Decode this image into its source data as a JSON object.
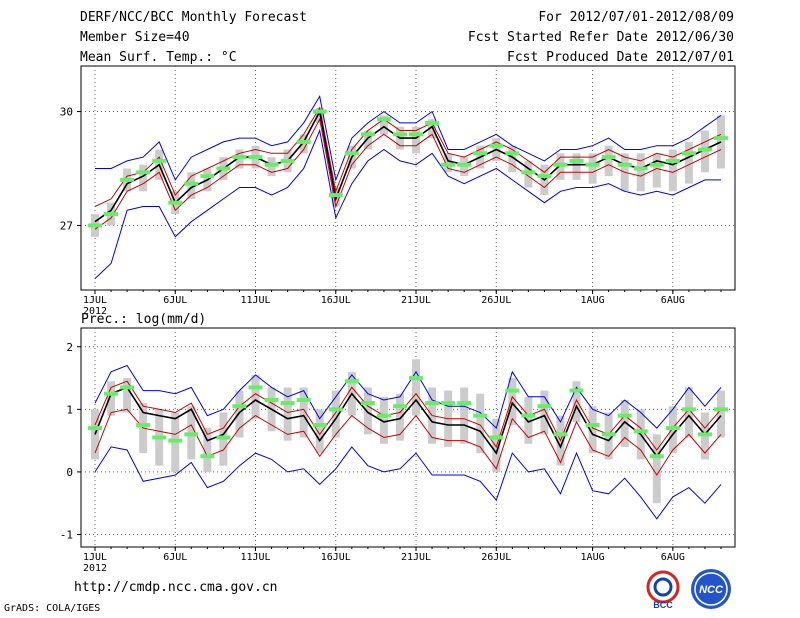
{
  "header": {
    "title": "DERF/NCC/BCC Monthly Forecast",
    "member_size": "Member Size=40",
    "variable": "Mean Surf. Temp.: °C",
    "period": "For 2012/07/01-2012/08/09",
    "started": "Fcst Started Refer Date 2012/06/30",
    "produced": "Fcst Produced Date 2012/07/01"
  },
  "footer": {
    "url": "http://cmdp.ncc.cma.gov.cn",
    "grads": "GrADS: COLA/IGES",
    "logo_left_text": "BCC",
    "logo_right_text": "NCC"
  },
  "colors": {
    "ensemble_bar": "#cccccc",
    "green_mark": "#66ee66",
    "mean_line": "#000000",
    "spread_inner": "#cc0000",
    "spread_outer": "#0000ee"
  },
  "chart_data": [
    {
      "type": "line",
      "title": "Mean Surf. Temp.: °C",
      "ylim": [
        25.3,
        31.2
      ],
      "yticks": [
        27,
        30
      ],
      "ytick_labels": [
        "27",
        "30"
      ],
      "xtick_labels": [
        "1JUL\n2012",
        "6JUL",
        "11JUL",
        "16JUL",
        "21JUL",
        "26JUL",
        "1AUG",
        "6AUG"
      ],
      "xtick_days": [
        0,
        5,
        10,
        15,
        20,
        25,
        31,
        36
      ],
      "x": [
        0,
        1,
        2,
        3,
        4,
        5,
        6,
        7,
        8,
        9,
        10,
        11,
        12,
        13,
        14,
        15,
        16,
        17,
        18,
        19,
        20,
        21,
        22,
        23,
        24,
        25,
        26,
        27,
        28,
        29,
        30,
        31,
        32,
        33,
        34,
        35,
        36,
        37,
        38,
        39
      ],
      "series": [
        {
          "name": "mean",
          "values": [
            27.1,
            27.4,
            28.1,
            28.3,
            28.6,
            27.6,
            28.0,
            28.2,
            28.5,
            28.8,
            28.8,
            28.6,
            28.7,
            29.2,
            30.0,
            27.7,
            28.8,
            29.3,
            29.6,
            29.3,
            29.3,
            29.6,
            28.7,
            28.6,
            28.8,
            29.0,
            28.8,
            28.5,
            28.2,
            28.6,
            28.6,
            28.6,
            28.8,
            28.6,
            28.5,
            28.7,
            28.6,
            28.8,
            29.0,
            29.2
          ]
        },
        {
          "name": "upper_inner",
          "values": [
            27.5,
            27.7,
            28.3,
            28.4,
            28.8,
            27.8,
            28.3,
            28.5,
            28.7,
            28.9,
            29.0,
            28.9,
            28.9,
            29.4,
            30.1,
            27.9,
            29.0,
            29.5,
            29.8,
            29.5,
            29.5,
            29.7,
            28.9,
            28.8,
            29.0,
            29.2,
            29.0,
            28.7,
            28.4,
            28.8,
            28.8,
            28.8,
            29.0,
            28.8,
            28.7,
            28.9,
            28.8,
            29.0,
            29.2,
            29.4
          ]
        },
        {
          "name": "lower_inner",
          "values": [
            26.9,
            27.2,
            27.9,
            28.1,
            28.4,
            27.4,
            27.8,
            28.0,
            28.3,
            28.6,
            28.6,
            28.4,
            28.5,
            29.0,
            29.8,
            27.5,
            28.6,
            29.1,
            29.4,
            29.1,
            29.1,
            29.4,
            28.5,
            28.4,
            28.6,
            28.8,
            28.6,
            28.3,
            28.0,
            28.4,
            28.4,
            28.4,
            28.6,
            28.4,
            28.3,
            28.5,
            28.4,
            28.6,
            28.8,
            29.0
          ]
        },
        {
          "name": "upper_outer",
          "values": [
            28.5,
            28.5,
            28.7,
            28.8,
            29.2,
            28.2,
            28.8,
            29.0,
            29.2,
            29.3,
            29.3,
            29.1,
            29.2,
            29.7,
            30.4,
            28.2,
            29.3,
            29.7,
            30.0,
            29.7,
            29.7,
            30.0,
            29.0,
            29.0,
            29.2,
            29.4,
            29.1,
            28.9,
            28.7,
            29.0,
            29.0,
            29.1,
            29.3,
            29.0,
            29.0,
            29.1,
            29.1,
            29.3,
            29.6,
            29.9
          ]
        },
        {
          "name": "lower_outer",
          "values": [
            25.6,
            26.0,
            27.4,
            27.5,
            27.5,
            26.7,
            27.1,
            27.4,
            27.7,
            28.0,
            28.0,
            27.8,
            28.0,
            28.5,
            29.5,
            27.2,
            28.1,
            28.7,
            29.0,
            28.7,
            28.6,
            28.9,
            28.3,
            28.1,
            28.3,
            28.5,
            28.2,
            27.9,
            27.6,
            27.9,
            28.0,
            28.0,
            28.1,
            27.9,
            27.8,
            27.9,
            27.8,
            28.0,
            28.2,
            28.2
          ]
        },
        {
          "name": "green_marker",
          "values": [
            27.0,
            27.3,
            28.2,
            28.4,
            28.7,
            27.6,
            28.1,
            28.3,
            28.5,
            28.8,
            28.8,
            28.6,
            28.7,
            29.2,
            30.0,
            27.8,
            28.9,
            29.4,
            29.8,
            29.4,
            29.4,
            29.7,
            28.6,
            28.6,
            28.9,
            29.1,
            28.9,
            28.4,
            28.3,
            28.6,
            28.7,
            28.6,
            28.8,
            28.6,
            28.5,
            28.6,
            28.7,
            28.9,
            29.0,
            29.3
          ]
        }
      ],
      "bar_low": [
        26.7,
        27.0,
        27.9,
        27.9,
        28.2,
        27.3,
        27.7,
        27.9,
        28.2,
        28.5,
        28.5,
        28.3,
        28.4,
        28.9,
        29.7,
        27.5,
        28.5,
        29.0,
        29.4,
        29.0,
        28.9,
        29.3,
        28.4,
        28.3,
        28.5,
        28.7,
        28.4,
        28.0,
        27.8,
        28.2,
        28.2,
        28.1,
        28.3,
        27.9,
        27.9,
        28.0,
        27.9,
        28.1,
        28.4,
        28.5
      ],
      "bar_high": [
        27.3,
        27.6,
        28.5,
        28.6,
        29.0,
        27.9,
        28.4,
        28.5,
        28.8,
        29.0,
        29.1,
        28.8,
        29.0,
        29.4,
        30.1,
        28.0,
        29.1,
        29.5,
        29.9,
        29.6,
        29.6,
        29.8,
        28.9,
        28.8,
        29.1,
        29.3,
        29.1,
        28.7,
        28.6,
        28.9,
        28.9,
        28.9,
        29.1,
        28.9,
        28.9,
        28.9,
        29.0,
        29.2,
        29.5,
        29.9
      ]
    },
    {
      "type": "line",
      "title": "Prec.: log(mm/d)",
      "ylim": [
        -1.2,
        2.3
      ],
      "yticks": [
        -1,
        0,
        1,
        2
      ],
      "ytick_labels": [
        "-1",
        "0",
        "1",
        "2"
      ],
      "xtick_labels": [
        "1JUL\n2012",
        "6JUL",
        "11JUL",
        "16JUL",
        "21JUL",
        "26JUL",
        "1AUG",
        "6AUG"
      ],
      "xtick_days": [
        0,
        5,
        10,
        15,
        20,
        25,
        31,
        36
      ],
      "x": [
        0,
        1,
        2,
        3,
        4,
        5,
        6,
        7,
        8,
        9,
        10,
        11,
        12,
        13,
        14,
        15,
        16,
        17,
        18,
        19,
        20,
        21,
        22,
        23,
        24,
        25,
        26,
        27,
        28,
        29,
        30,
        31,
        32,
        33,
        34,
        35,
        36,
        37,
        38,
        39
      ],
      "series": [
        {
          "name": "mean",
          "values": [
            0.6,
            1.25,
            1.35,
            0.95,
            0.9,
            0.85,
            1.0,
            0.5,
            0.6,
            0.95,
            1.15,
            1.0,
            0.85,
            0.9,
            0.5,
            0.85,
            1.25,
            0.95,
            0.8,
            0.85,
            1.15,
            0.8,
            0.75,
            0.75,
            0.65,
            0.3,
            1.1,
            0.8,
            0.9,
            0.4,
            1.05,
            0.6,
            0.5,
            0.8,
            0.6,
            0.25,
            0.6,
            0.9,
            0.6,
            0.9
          ]
        },
        {
          "name": "upper_inner",
          "values": [
            0.75,
            1.35,
            1.45,
            1.05,
            1.0,
            0.95,
            1.1,
            0.6,
            0.7,
            1.05,
            1.25,
            1.1,
            0.95,
            1.0,
            0.6,
            0.95,
            1.35,
            1.05,
            0.9,
            0.95,
            1.25,
            0.9,
            0.85,
            0.85,
            0.75,
            0.4,
            1.2,
            0.9,
            1.0,
            0.5,
            1.15,
            0.7,
            0.6,
            0.9,
            0.7,
            0.35,
            0.7,
            1.0,
            0.7,
            1.0
          ]
        },
        {
          "name": "lower_inner",
          "values": [
            0.3,
            0.95,
            1.0,
            0.7,
            0.65,
            0.6,
            0.75,
            0.25,
            0.35,
            0.7,
            0.9,
            0.75,
            0.6,
            0.65,
            0.25,
            0.6,
            0.9,
            0.7,
            0.55,
            0.6,
            0.9,
            0.55,
            0.5,
            0.5,
            0.4,
            0.05,
            0.85,
            0.55,
            0.65,
            0.15,
            0.8,
            0.35,
            0.25,
            0.55,
            0.35,
            -0.05,
            0.35,
            0.6,
            0.3,
            0.6
          ]
        },
        {
          "name": "upper_outer",
          "values": [
            1.1,
            1.6,
            1.7,
            1.3,
            1.3,
            1.25,
            1.35,
            0.9,
            1.0,
            1.3,
            1.55,
            1.35,
            1.2,
            1.3,
            0.85,
            1.2,
            1.55,
            1.25,
            1.15,
            1.2,
            1.6,
            1.15,
            1.05,
            1.05,
            0.95,
            0.7,
            1.6,
            1.2,
            1.2,
            0.8,
            1.35,
            1.0,
            0.9,
            1.15,
            0.95,
            0.7,
            1.0,
            1.35,
            1.05,
            1.35
          ]
        },
        {
          "name": "lower_outer",
          "values": [
            0.0,
            0.4,
            0.35,
            -0.15,
            -0.1,
            -0.05,
            0.15,
            -0.25,
            -0.15,
            0.1,
            0.3,
            0.2,
            0.0,
            0.05,
            -0.2,
            0.05,
            0.4,
            0.1,
            0.0,
            0.05,
            0.3,
            -0.05,
            -0.05,
            -0.05,
            -0.15,
            -0.45,
            0.3,
            0.0,
            0.05,
            -0.35,
            0.3,
            -0.3,
            -0.35,
            -0.1,
            -0.4,
            -0.75,
            -0.4,
            -0.25,
            -0.5,
            -0.2
          ]
        },
        {
          "name": "green_marker",
          "values": [
            0.7,
            1.25,
            1.35,
            0.75,
            0.55,
            0.5,
            0.6,
            0.25,
            0.55,
            1.05,
            1.35,
            1.15,
            1.1,
            1.15,
            0.75,
            1.0,
            1.45,
            1.1,
            0.9,
            1.05,
            1.5,
            1.1,
            1.1,
            1.1,
            0.9,
            0.55,
            1.3,
            0.9,
            1.05,
            0.6,
            1.3,
            0.75,
            0.6,
            0.9,
            0.65,
            0.25,
            0.7,
            1.0,
            0.6,
            1.0
          ]
        }
      ],
      "bar_low": [
        0.2,
        0.9,
        0.95,
        0.3,
        0.1,
        0.0,
        0.2,
        0.0,
        0.1,
        0.55,
        0.85,
        0.65,
        0.5,
        0.55,
        0.3,
        0.55,
        0.9,
        0.6,
        0.45,
        0.5,
        0.9,
        0.45,
        0.4,
        0.45,
        0.3,
        0.0,
        0.75,
        0.45,
        0.6,
        0.1,
        0.8,
        0.3,
        0.2,
        0.4,
        0.2,
        -0.5,
        0.3,
        0.55,
        0.2,
        0.55
      ],
      "bar_high": [
        1.0,
        1.45,
        1.5,
        1.1,
        1.0,
        0.95,
        1.05,
        0.7,
        0.95,
        1.3,
        1.55,
        1.35,
        1.35,
        1.35,
        1.0,
        1.3,
        1.6,
        1.35,
        1.2,
        1.25,
        1.8,
        1.35,
        1.3,
        1.35,
        1.25,
        0.85,
        1.5,
        1.2,
        1.3,
        0.9,
        1.45,
        1.05,
        0.95,
        1.15,
        1.0,
        0.6,
        1.05,
        1.35,
        0.95,
        1.3
      ]
    }
  ]
}
